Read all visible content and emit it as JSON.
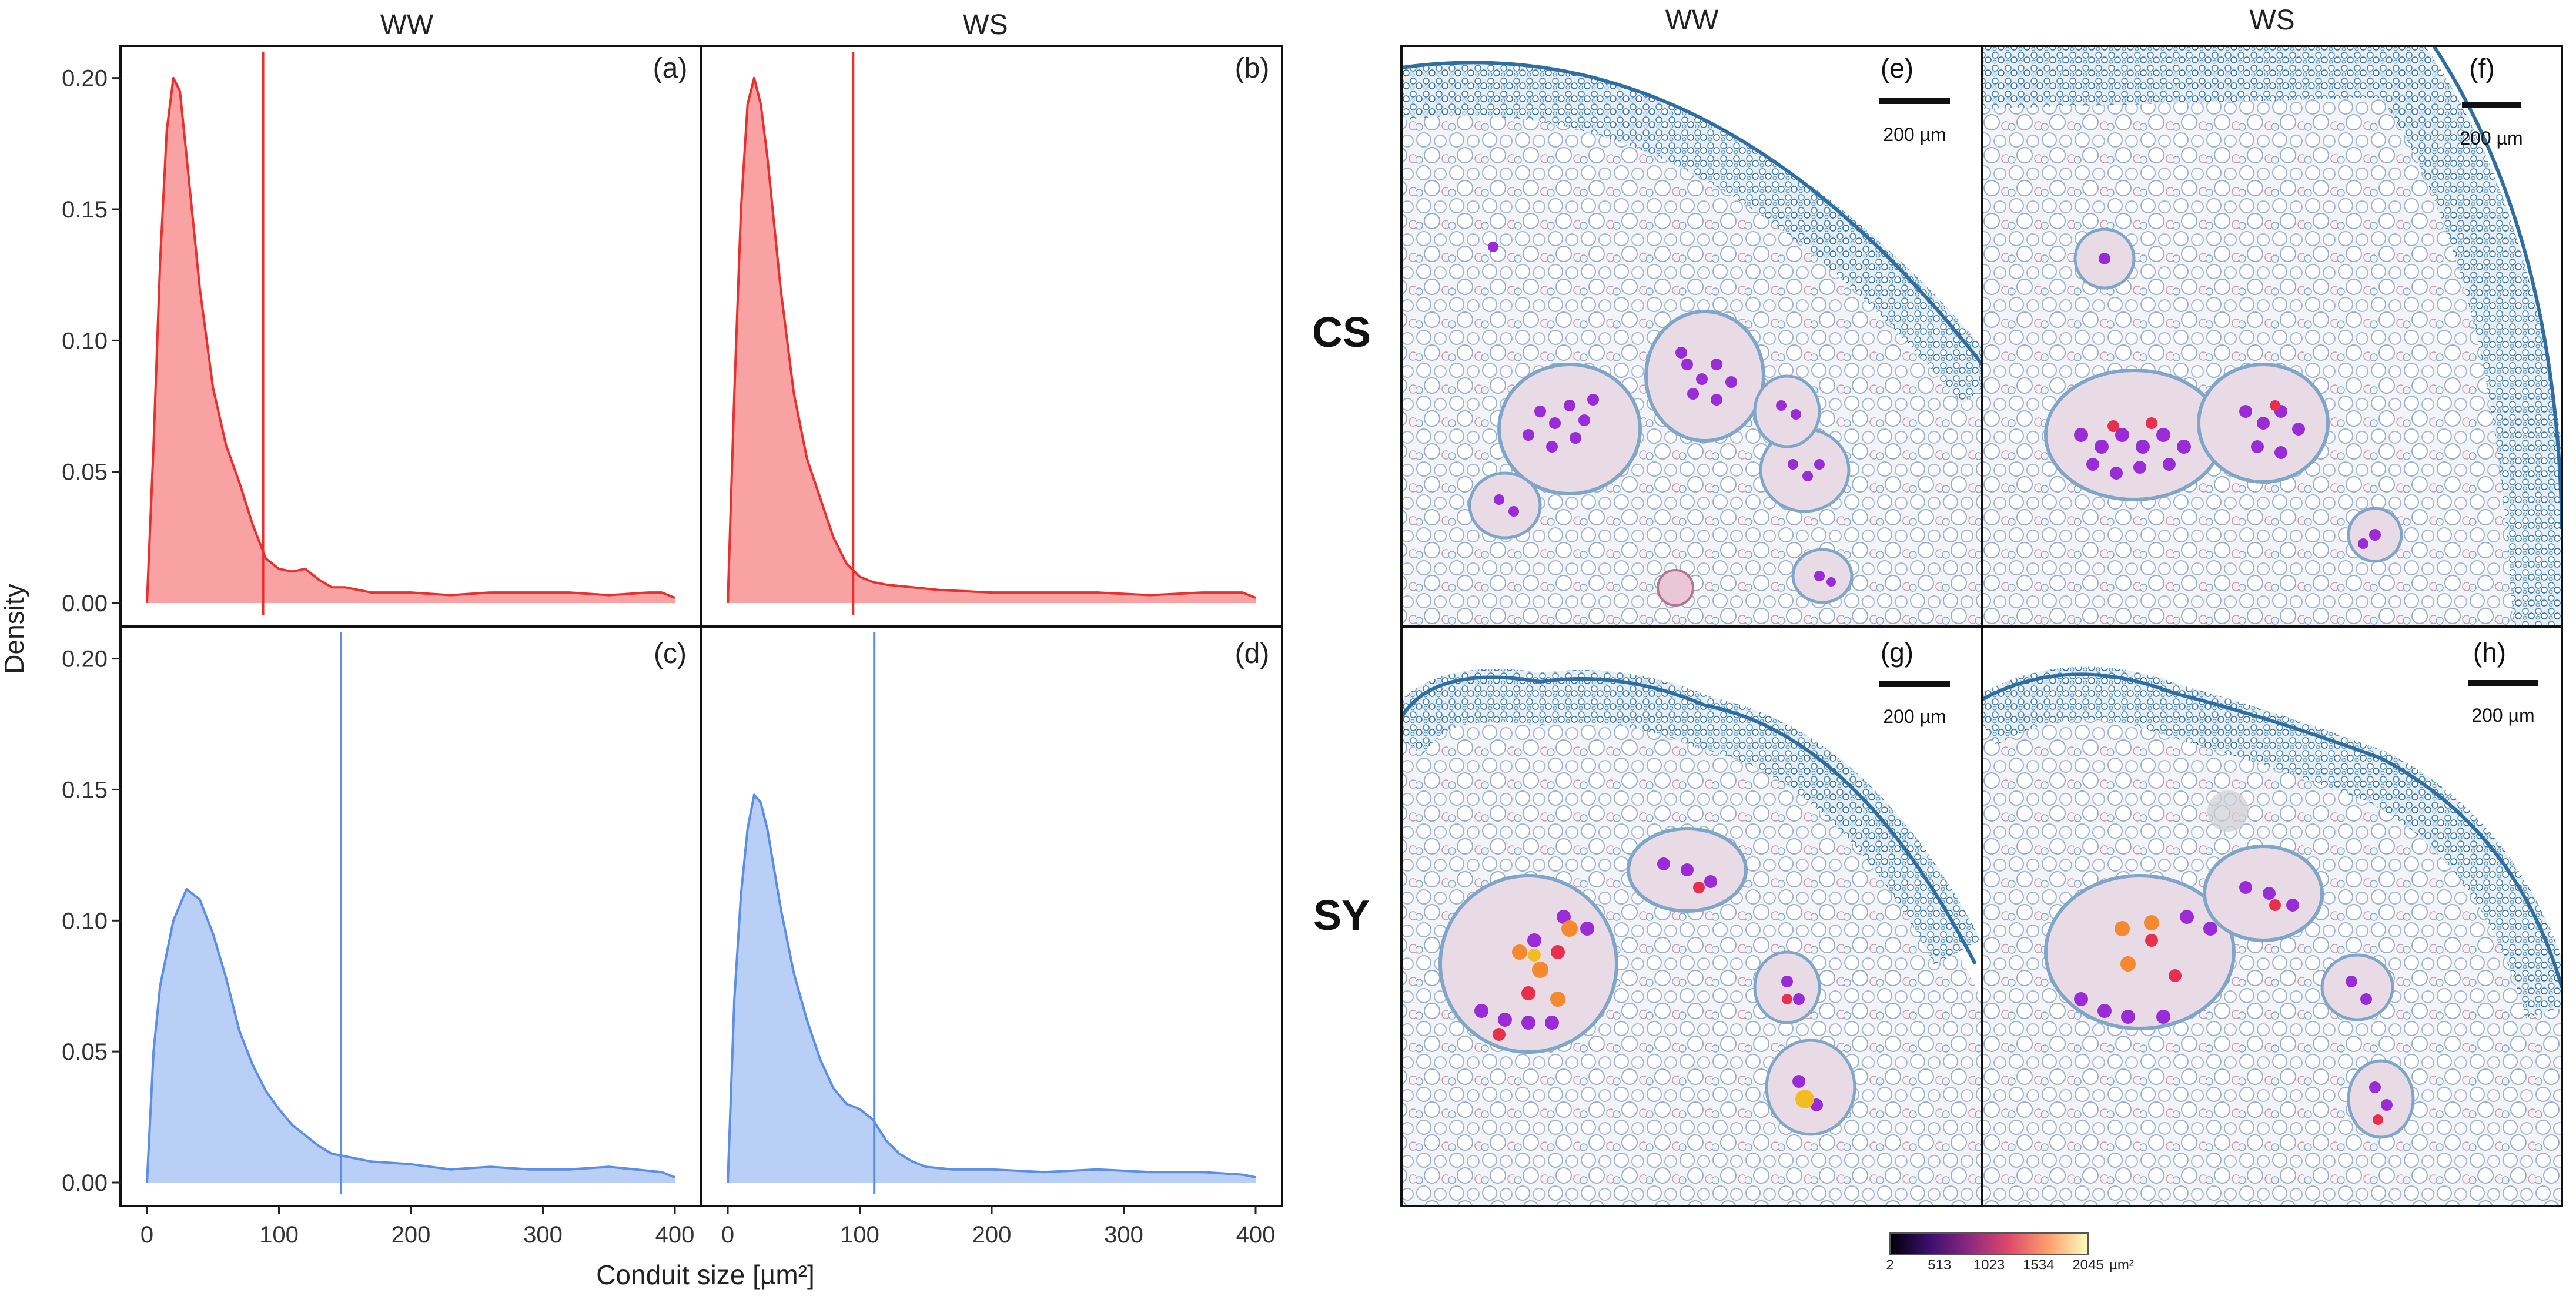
{
  "figure": {
    "left_columns": [
      "WW",
      "WS"
    ],
    "right_columns": [
      "WW",
      "WS"
    ],
    "row_labels": [
      "CS",
      "SY"
    ],
    "y_label": "Density",
    "x_label": "Conduit size [µm²]",
    "scale_bar": "200 µm",
    "colorbar": {
      "ticks": [
        "2",
        "513",
        "1023",
        "1534",
        "2045"
      ],
      "unit": "µm²",
      "colors": [
        "#000004",
        "#3b0f70",
        "#8c2981",
        "#de4968",
        "#fe9f6d",
        "#fcfdbf"
      ]
    },
    "micro_panels": [
      "(e)",
      "(f)",
      "(g)",
      "(h)"
    ]
  },
  "colors": {
    "red_line": "#e8312f",
    "red_fill": "#f9a2a4",
    "blue_line": "#5d8ee6",
    "blue_fill": "#b9cff5"
  },
  "chart_data": [
    {
      "type": "area",
      "panel": "(a)",
      "column": "WW",
      "series": "CS",
      "x": [
        0,
        5,
        10,
        15,
        20,
        25,
        30,
        40,
        50,
        60,
        70,
        80,
        90,
        100,
        110,
        120,
        130,
        140,
        150,
        170,
        200,
        230,
        260,
        290,
        320,
        350,
        380,
        390,
        400
      ],
      "y": [
        0.0,
        0.06,
        0.13,
        0.18,
        0.2,
        0.195,
        0.17,
        0.12,
        0.082,
        0.06,
        0.046,
        0.03,
        0.017,
        0.013,
        0.012,
        0.013,
        0.009,
        0.006,
        0.006,
        0.004,
        0.004,
        0.003,
        0.004,
        0.004,
        0.004,
        0.003,
        0.004,
        0.004,
        0.002
      ],
      "vline": 88,
      "xlim": [
        0,
        400
      ],
      "ylim": [
        0,
        0.21
      ],
      "yticks": [
        "0.00",
        "0.05",
        "0.10",
        "0.15",
        "0.20"
      ],
      "xticks": []
    },
    {
      "type": "area",
      "panel": "(b)",
      "column": "WS",
      "series": "CS",
      "x": [
        0,
        5,
        10,
        15,
        20,
        25,
        30,
        40,
        50,
        60,
        70,
        80,
        90,
        100,
        110,
        120,
        140,
        160,
        200,
        240,
        280,
        320,
        360,
        380,
        390,
        400
      ],
      "y": [
        0.0,
        0.08,
        0.15,
        0.19,
        0.2,
        0.19,
        0.17,
        0.12,
        0.08,
        0.055,
        0.04,
        0.025,
        0.015,
        0.01,
        0.008,
        0.007,
        0.006,
        0.005,
        0.004,
        0.004,
        0.004,
        0.003,
        0.004,
        0.004,
        0.004,
        0.002
      ],
      "vline": 95,
      "xlim": [
        0,
        400
      ],
      "ylim": [
        0,
        0.21
      ],
      "yticks": [],
      "xticks": []
    },
    {
      "type": "area",
      "panel": "(c)",
      "column": "WW",
      "series": "SY",
      "x": [
        0,
        5,
        10,
        20,
        30,
        40,
        50,
        60,
        70,
        80,
        90,
        100,
        110,
        120,
        130,
        140,
        150,
        170,
        200,
        230,
        260,
        290,
        320,
        350,
        370,
        390,
        400
      ],
      "y": [
        0.0,
        0.05,
        0.075,
        0.1,
        0.112,
        0.108,
        0.095,
        0.078,
        0.058,
        0.045,
        0.035,
        0.028,
        0.022,
        0.018,
        0.014,
        0.011,
        0.01,
        0.008,
        0.007,
        0.005,
        0.006,
        0.005,
        0.005,
        0.006,
        0.005,
        0.004,
        0.002
      ],
      "vline": 147,
      "xlim": [
        0,
        400
      ],
      "ylim": [
        0,
        0.21
      ],
      "yticks": [
        "0.00",
        "0.05",
        "0.10",
        "0.15",
        "0.20"
      ],
      "xticks": [
        "0",
        "100",
        "200",
        "300",
        "400"
      ]
    },
    {
      "type": "area",
      "panel": "(d)",
      "column": "WS",
      "series": "SY",
      "x": [
        0,
        5,
        10,
        15,
        20,
        25,
        30,
        40,
        50,
        60,
        70,
        80,
        90,
        100,
        110,
        120,
        130,
        140,
        150,
        170,
        200,
        240,
        280,
        320,
        360,
        390,
        400
      ],
      "y": [
        0.0,
        0.07,
        0.11,
        0.135,
        0.148,
        0.145,
        0.135,
        0.105,
        0.08,
        0.062,
        0.047,
        0.036,
        0.03,
        0.028,
        0.024,
        0.016,
        0.011,
        0.008,
        0.006,
        0.005,
        0.005,
        0.004,
        0.005,
        0.004,
        0.004,
        0.003,
        0.002
      ],
      "vline": 111,
      "xlim": [
        0,
        400
      ],
      "ylim": [
        0,
        0.21
      ],
      "yticks": [],
      "xticks": [
        "0",
        "100",
        "200",
        "300",
        "400"
      ]
    }
  ]
}
